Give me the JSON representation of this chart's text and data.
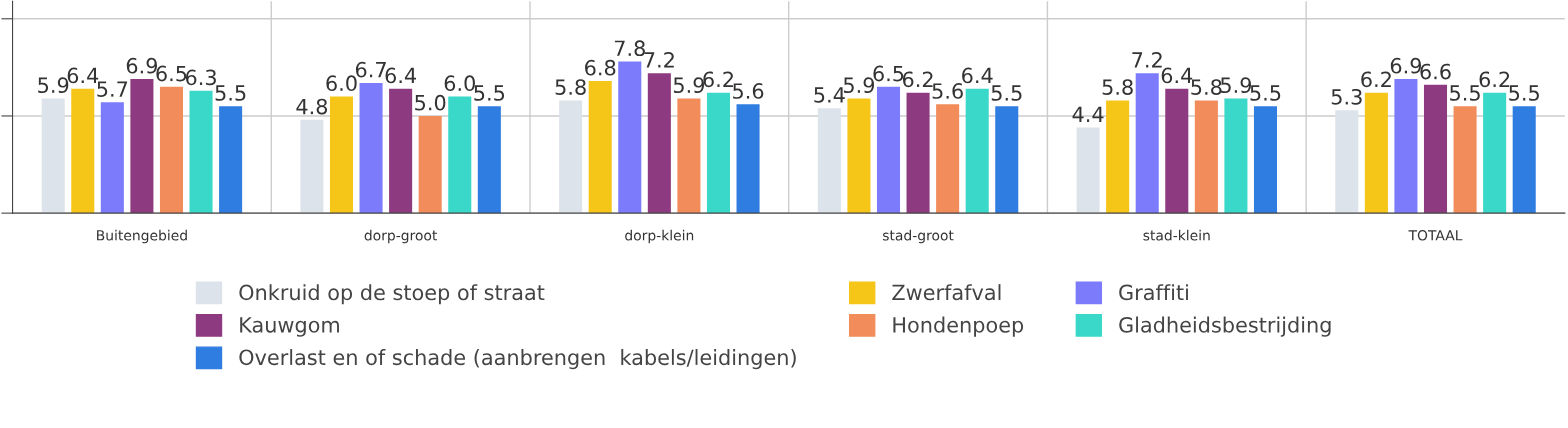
{
  "chart_data": {
    "type": "bar",
    "categories": [
      "Buitengebied",
      "dorp-groot",
      "dorp-klein",
      "stad-groot",
      "stad-klein",
      "TOTAAL"
    ],
    "series": [
      {
        "name": "Onkruid op de stoep of straat",
        "color": "#dde3ea",
        "values": [
          5.9,
          4.8,
          5.8,
          5.4,
          4.4,
          5.3
        ],
        "value_labels": [
          "5.9",
          "4.8",
          "5.8",
          "5.4",
          "4.4",
          "5.3"
        ]
      },
      {
        "name": "Zwerfafval",
        "color": "#f5c518",
        "values": [
          6.4,
          6.0,
          6.8,
          5.9,
          5.8,
          6.2
        ],
        "value_labels": [
          "6.4",
          "6.0",
          "6.8",
          "5.9",
          "5.8",
          "6.2"
        ]
      },
      {
        "name": "Graffiti",
        "color": "#7b7bfb",
        "values": [
          5.7,
          6.7,
          7.8,
          6.5,
          7.2,
          6.9
        ],
        "value_labels": [
          "5.7",
          "6.7",
          "7.8",
          "6.5",
          "7.2",
          "6.9"
        ]
      },
      {
        "name": "Kauwgom",
        "color": "#8e3a80",
        "values": [
          6.9,
          6.4,
          7.2,
          6.2,
          6.4,
          6.6
        ],
        "value_labels": [
          "6.9",
          "6.4",
          "7.2",
          "6.2",
          "6.4",
          "6.6"
        ]
      },
      {
        "name": "Hondenpoep",
        "color": "#f28c5a",
        "values": [
          6.5,
          5.0,
          5.9,
          5.6,
          5.8,
          5.5
        ],
        "value_labels": [
          "6.5",
          "5.0",
          "5.9",
          "5.6",
          "5.8",
          "5.5"
        ]
      },
      {
        "name": "Gladheidsbestrijding",
        "color": "#3ad8c8",
        "values": [
          6.3,
          6.0,
          6.2,
          6.4,
          5.9,
          6.2
        ],
        "value_labels": [
          "6.3",
          "6.0",
          "6.2",
          "6.4",
          "5.9",
          "6.2"
        ]
      },
      {
        "name": "Overlast en of schade (aanbrengen  kabels/leidingen)",
        "color": "#2f7de1",
        "values": [
          5.5,
          5.5,
          5.6,
          5.5,
          5.5,
          5.5
        ],
        "value_labels": [
          "5.5",
          "5.5",
          "5.6",
          "5.5",
          "5.5",
          "5.5"
        ]
      }
    ],
    "ylim": [
      0,
      10.9
    ],
    "yticks": [
      {
        "value": 0,
        "label": null
      },
      {
        "value": 5,
        "label": null
      },
      {
        "value": 10,
        "label": null
      }
    ],
    "tick_labels": "x",
    "grid": true,
    "legend": "bottom"
  }
}
